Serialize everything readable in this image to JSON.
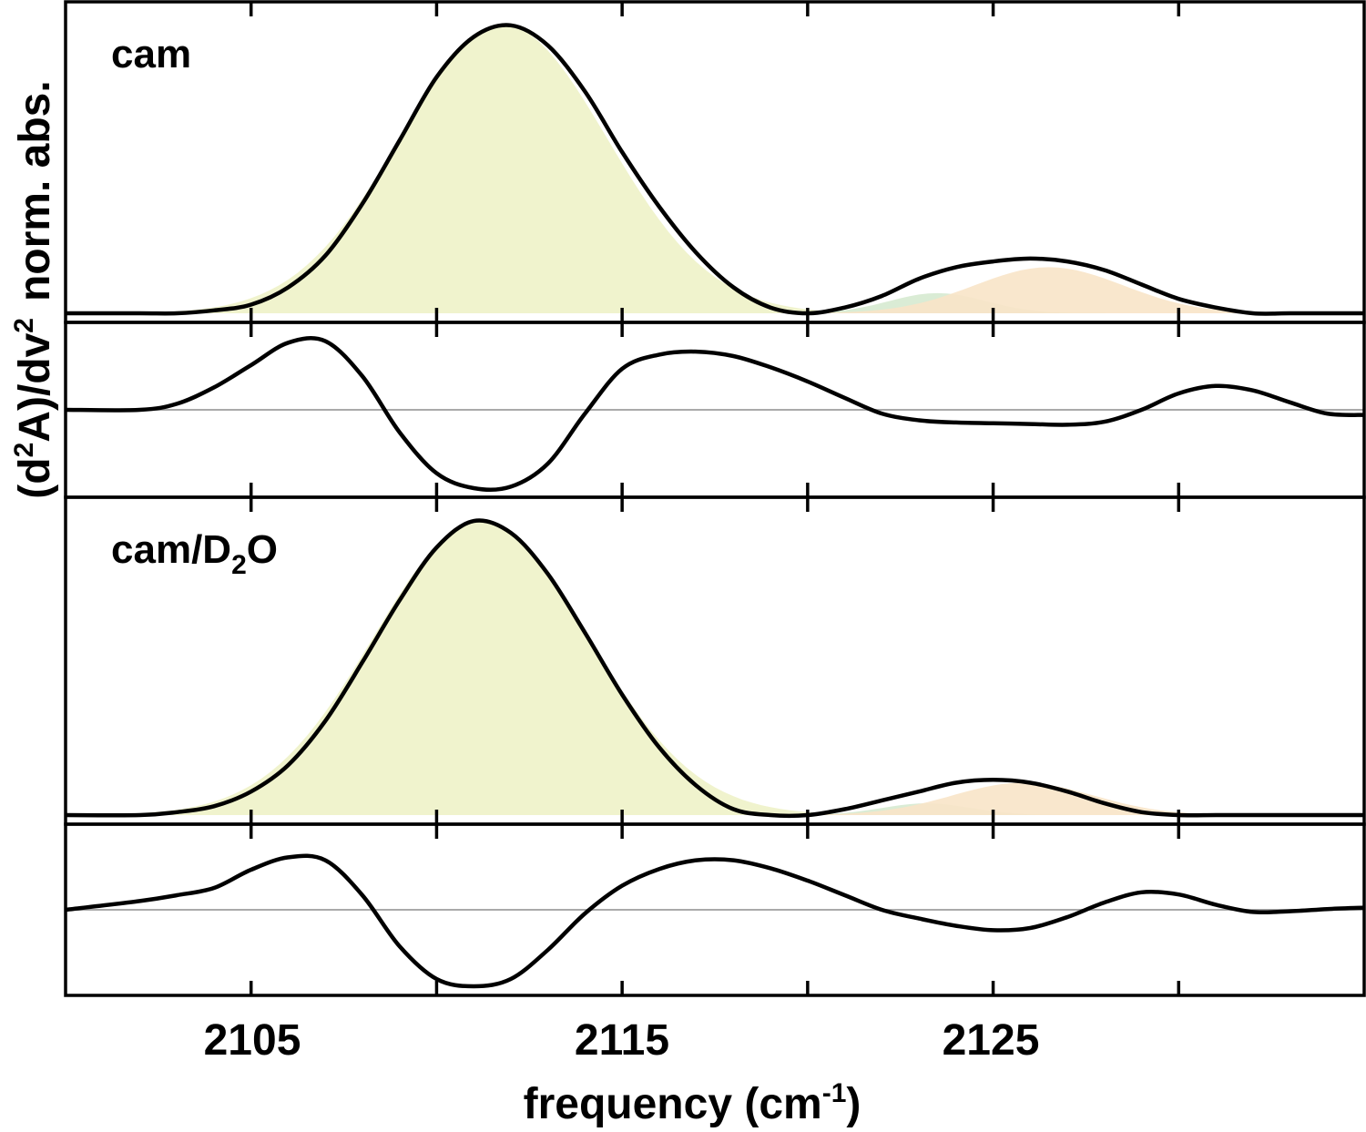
{
  "chart_data": [
    {
      "type": "area",
      "panel": "cam absorbance",
      "label_main": "cam",
      "label_sub": "",
      "label_tail": "",
      "xlim": [
        2100,
        2135
      ],
      "ylim": [
        0,
        1.05
      ],
      "x": [
        2100,
        2102,
        2103,
        2104,
        2105,
        2106,
        2107,
        2108,
        2109,
        2110,
        2111,
        2112,
        2113,
        2114,
        2115,
        2116,
        2117,
        2118,
        2119,
        2120,
        2121,
        2122,
        2123,
        2124,
        2125,
        2126,
        2127,
        2128,
        2129,
        2130,
        2131,
        2132,
        2133,
        2134,
        2135
      ],
      "y": [
        0.0,
        0.0,
        0.0,
        0.01,
        0.03,
        0.09,
        0.2,
        0.38,
        0.6,
        0.82,
        0.96,
        1.0,
        0.93,
        0.77,
        0.56,
        0.37,
        0.21,
        0.09,
        0.02,
        0.0,
        0.02,
        0.06,
        0.12,
        0.16,
        0.18,
        0.19,
        0.18,
        0.15,
        0.1,
        0.05,
        0.02,
        0.0,
        0.0,
        0.0,
        0.0
      ],
      "components": [
        {
          "color": "#eef2c8",
          "center": 2111.8,
          "width": 2.8,
          "amplitude": 1.0
        },
        {
          "color": "#d6ead0",
          "center": 2123.5,
          "width": 1.3,
          "amplitude": 0.07
        },
        {
          "color": "#f8e4c8",
          "center": 2126.5,
          "width": 2.0,
          "amplitude": 0.16
        }
      ],
      "baseline": "#aaaaaa",
      "show_baseline": false
    },
    {
      "type": "line",
      "panel": "cam second derivative",
      "xlim": [
        2100,
        2135
      ],
      "ylim": [
        -1.05,
        1.05
      ],
      "x": [
        2100,
        2102,
        2103,
        2104,
        2105,
        2106,
        2107,
        2108,
        2109,
        2110,
        2111,
        2112,
        2113,
        2114,
        2115,
        2116,
        2117,
        2118,
        2119,
        2120,
        2121,
        2122,
        2123,
        2124,
        2125,
        2126,
        2127,
        2128,
        2129,
        2130,
        2131,
        2132,
        2133,
        2134,
        2135
      ],
      "y": [
        0.0,
        0.0,
        0.08,
        0.3,
        0.6,
        0.9,
        0.92,
        0.45,
        -0.3,
        -0.85,
        -1.05,
        -1.03,
        -0.72,
        -0.05,
        0.55,
        0.74,
        0.78,
        0.72,
        0.57,
        0.38,
        0.16,
        -0.05,
        -0.14,
        -0.17,
        -0.18,
        -0.19,
        -0.2,
        -0.16,
        0.0,
        0.22,
        0.32,
        0.26,
        0.1,
        -0.05,
        -0.07
      ],
      "baseline": "#aaaaaa",
      "show_baseline": true
    },
    {
      "type": "area",
      "panel": "cam/D2O absorbance",
      "label_main": "cam/D",
      "label_sub": "2",
      "label_tail": "O",
      "xlim": [
        2100,
        2135
      ],
      "ylim": [
        0,
        1.05
      ],
      "x": [
        2100,
        2102,
        2103,
        2104,
        2105,
        2106,
        2107,
        2108,
        2109,
        2110,
        2111,
        2112,
        2113,
        2114,
        2115,
        2116,
        2117,
        2118,
        2119,
        2120,
        2121,
        2122,
        2123,
        2124,
        2125,
        2126,
        2127,
        2128,
        2129,
        2130,
        2131,
        2132,
        2133,
        2134,
        2135
      ],
      "y": [
        0.0,
        0.0,
        0.01,
        0.03,
        0.08,
        0.17,
        0.32,
        0.52,
        0.73,
        0.91,
        1.0,
        0.96,
        0.82,
        0.62,
        0.41,
        0.23,
        0.1,
        0.02,
        0.0,
        0.0,
        0.02,
        0.05,
        0.08,
        0.11,
        0.12,
        0.11,
        0.08,
        0.04,
        0.01,
        0.0,
        0.0,
        0.0,
        0.0,
        0.0,
        0.0
      ],
      "components": [
        {
          "color": "#eef2c8",
          "center": 2111.2,
          "width": 2.9,
          "amplitude": 1.0
        },
        {
          "color": "#d6ead0",
          "center": 2123.2,
          "width": 1.2,
          "amplitude": 0.04
        },
        {
          "color": "#f8e4c8",
          "center": 2125.8,
          "width": 1.9,
          "amplitude": 0.11
        }
      ],
      "baseline": "#aaaaaa",
      "show_baseline": false
    },
    {
      "type": "line",
      "panel": "cam/D2O second derivative",
      "xlim": [
        2100,
        2135
      ],
      "ylim": [
        -1.05,
        1.05
      ],
      "x": [
        2100,
        2102,
        2103,
        2104,
        2105,
        2106,
        2107,
        2108,
        2109,
        2110,
        2111,
        2112,
        2113,
        2114,
        2115,
        2116,
        2117,
        2118,
        2119,
        2120,
        2121,
        2122,
        2123,
        2124,
        2125,
        2126,
        2127,
        2128,
        2129,
        2130,
        2131,
        2132,
        2133,
        2134,
        2135
      ],
      "y": [
        0.0,
        0.12,
        0.2,
        0.3,
        0.55,
        0.72,
        0.68,
        0.2,
        -0.5,
        -0.95,
        -1.05,
        -0.95,
        -0.55,
        -0.05,
        0.33,
        0.56,
        0.68,
        0.68,
        0.57,
        0.4,
        0.2,
        0.0,
        -0.12,
        -0.22,
        -0.28,
        -0.25,
        -0.1,
        0.1,
        0.24,
        0.21,
        0.07,
        -0.03,
        -0.02,
        0.01,
        0.03
      ],
      "baseline": "#aaaaaa",
      "show_baseline": true
    }
  ],
  "axes": {
    "xticks": [
      2105,
      2115,
      2125
    ],
    "minor_ticks": [
      2110,
      2120,
      2130
    ],
    "xlabel_main": "frequency (cm",
    "xlabel_sup": "-1",
    "xlabel_tail": ")",
    "ylabel_top": "norm. abs.",
    "ylabel_bottom_main": "(d",
    "ylabel_bottom_sup1": "2",
    "ylabel_bottom_mid": "A)/dv",
    "ylabel_bottom_sup2": "2"
  }
}
